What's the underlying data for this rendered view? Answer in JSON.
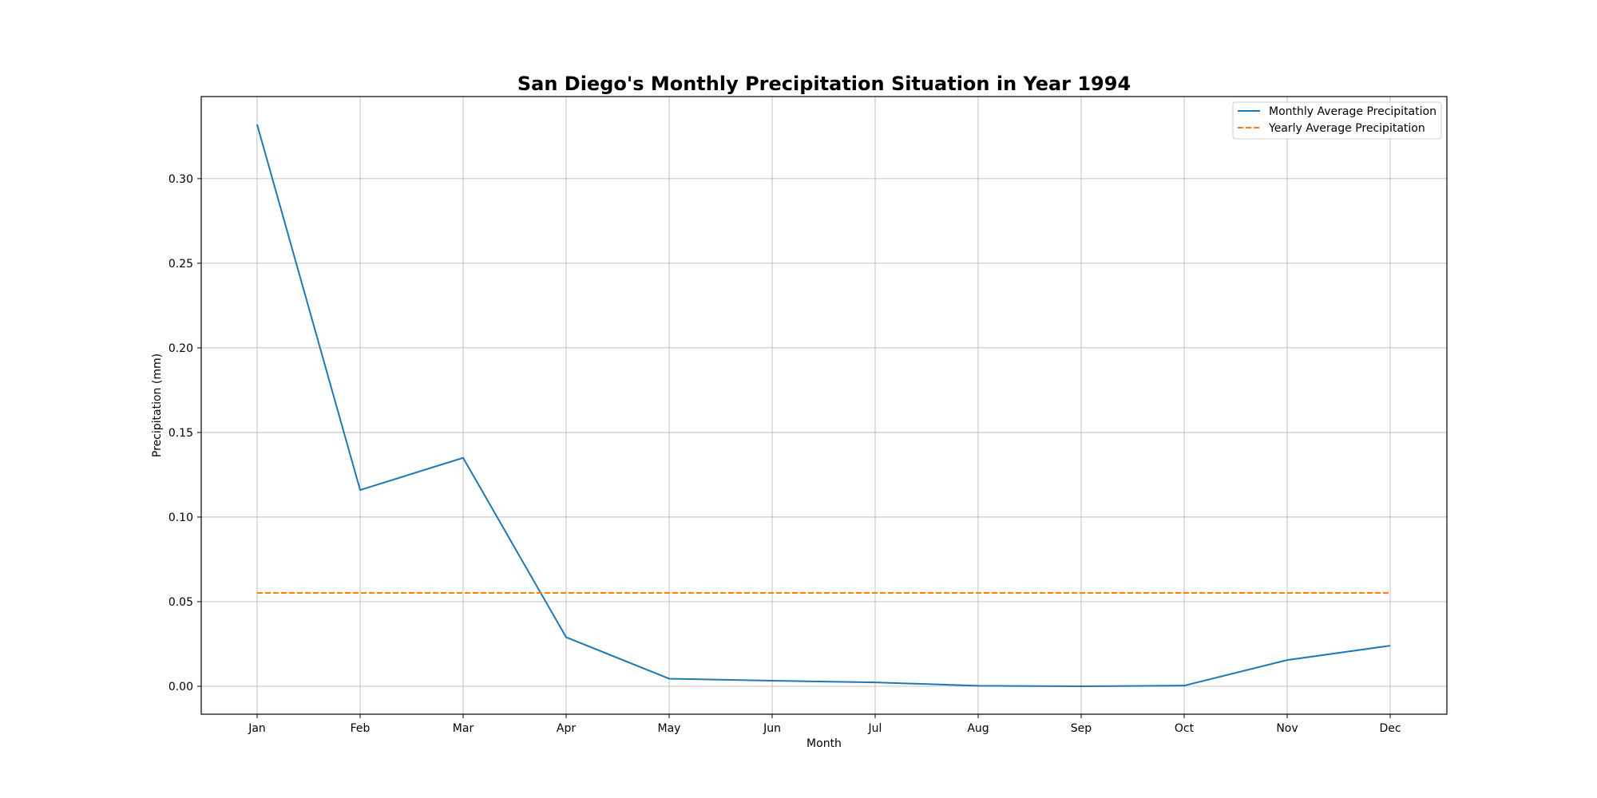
{
  "chart_data": {
    "type": "line",
    "title": "San Diego's Monthly Precipitation Situation in Year 1994",
    "xlabel": "Month",
    "ylabel": "Precipitation (mm)",
    "categories": [
      "Jan",
      "Feb",
      "Mar",
      "Apr",
      "May",
      "Jun",
      "Jul",
      "Aug",
      "Sep",
      "Oct",
      "Nov",
      "Dec"
    ],
    "ylim": [
      -0.0165,
      0.3485
    ],
    "yticks": [
      "0.00",
      "0.05",
      "0.10",
      "0.15",
      "0.20",
      "0.25",
      "0.30"
    ],
    "grid": true,
    "legend_position": "top-right",
    "series": [
      {
        "name": "Monthly Average Precipitation",
        "style": "solid",
        "color": "#1f77b4",
        "values": [
          0.332,
          0.116,
          0.135,
          0.029,
          0.0045,
          0.0033,
          0.0023,
          0.0003,
          0.0,
          0.0004,
          0.0155,
          0.024
        ]
      },
      {
        "name": "Yearly Average Precipitation",
        "style": "dashed",
        "color": "#ff7f0e",
        "values": [
          0.0552,
          0.0552,
          0.0552,
          0.0552,
          0.0552,
          0.0552,
          0.0552,
          0.0552,
          0.0552,
          0.0552,
          0.0552,
          0.0552
        ]
      }
    ]
  }
}
